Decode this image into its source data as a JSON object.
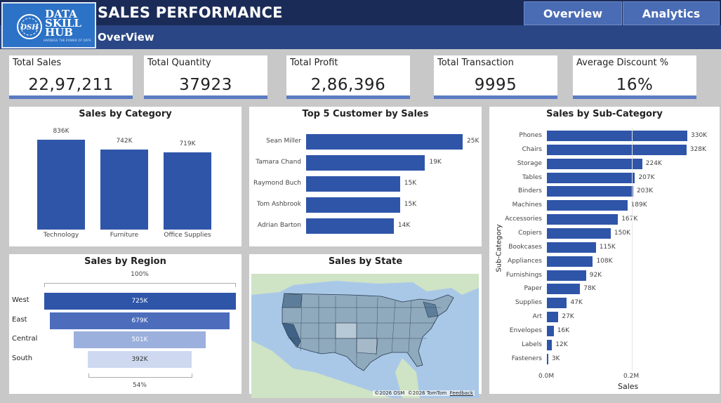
{
  "header": {
    "logo": {
      "badge": "DSH",
      "line1": "DATA",
      "line2": "SKILL",
      "line3": "HUB",
      "tagline": "HARNESS THE POWER OF DATA"
    },
    "title": "SALES PERFORMANCE",
    "subtitle": "OverView",
    "nav": {
      "overview": "Overview",
      "analytics": "Analytics"
    }
  },
  "kpis": [
    {
      "label": "Total Sales",
      "value": "22,97,211"
    },
    {
      "label": "Total Quantity",
      "value": "37923"
    },
    {
      "label": "Total Profit",
      "value": "2,86,396"
    },
    {
      "label": "Total Transaction",
      "value": "9995"
    },
    {
      "label": "Average Discount %",
      "value": "16%"
    }
  ],
  "colors": {
    "header": "#1b2b57",
    "subbar": "#2a4684",
    "bar": "#2f55a9",
    "kpi_underline": "#5b7bc3"
  },
  "chart_data": [
    {
      "id": "sales-by-category",
      "type": "bar",
      "title": "Sales by Category",
      "categories": [
        "Technology",
        "Furniture",
        "Office Supplies"
      ],
      "values": [
        836,
        742,
        719
      ],
      "data_labels": [
        "836K",
        "742K",
        "719K"
      ]
    },
    {
      "id": "top5-customers",
      "type": "bar",
      "orientation": "horizontal",
      "title": "Top 5 Customer by Sales",
      "categories": [
        "Sean Miller",
        "Tamara Chand",
        "Raymond Buch",
        "Tom Ashbrook",
        "Adrian Barton"
      ],
      "values": [
        25,
        19,
        15,
        15,
        14
      ],
      "data_labels": [
        "25K",
        "19K",
        "15K",
        "15K",
        "14K"
      ]
    },
    {
      "id": "sales-by-subcategory",
      "type": "bar",
      "orientation": "horizontal",
      "title": "Sales by Sub-Category",
      "ylabel": "Sub-Category",
      "xlabel": "Sales",
      "xticks": [
        "0.0M",
        "0.2M"
      ],
      "xlim": [
        0,
        0.35
      ],
      "categories": [
        "Phones",
        "Chairs",
        "Storage",
        "Tables",
        "Binders",
        "Machines",
        "Accessories",
        "Copiers",
        "Bookcases",
        "Appliances",
        "Furnishings",
        "Paper",
        "Supplies",
        "Art",
        "Envelopes",
        "Labels",
        "Fasteners"
      ],
      "values": [
        330,
        328,
        224,
        207,
        203,
        189,
        167,
        150,
        115,
        108,
        92,
        78,
        47,
        27,
        16,
        12,
        3
      ],
      "data_labels": [
        "330K",
        "328K",
        "224K",
        "207K",
        "203K",
        "189K",
        "167K",
        "150K",
        "115K",
        "108K",
        "92K",
        "78K",
        "47K",
        "27K",
        "16K",
        "12K",
        "3K"
      ]
    },
    {
      "id": "sales-by-region",
      "type": "bar",
      "subtype": "funnel",
      "title": "Sales by Region",
      "categories": [
        "West",
        "East",
        "Central",
        "South"
      ],
      "values": [
        725,
        679,
        501,
        392
      ],
      "data_labels": [
        "725K",
        "679K",
        "501K",
        "392K"
      ],
      "top_label": "100%",
      "bottom_label": "54%",
      "colors": [
        "#2f55a9",
        "#4d6dbc",
        "#9cb0dd",
        "#ced9f0"
      ]
    }
  ],
  "map": {
    "title": "Sales by State",
    "attribution": {
      "osm": "©2026 OSM",
      "tomtom": "©2026 TomTom",
      "feedback": "Feedback"
    }
  }
}
